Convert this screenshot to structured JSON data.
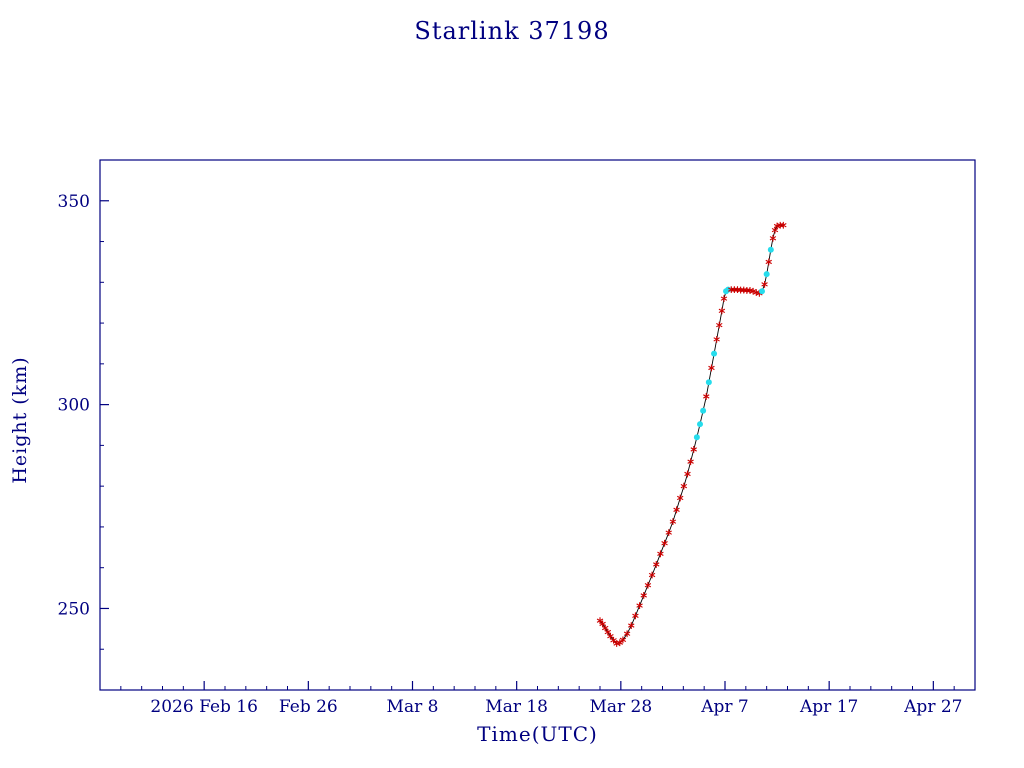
{
  "title": "Starlink 37198",
  "colors": {
    "axis": "#000080",
    "text": "#000080",
    "line": "#000000",
    "marker_red": "#cc0000",
    "marker_cyan": "#25dcec",
    "background": "#ffffff"
  },
  "chart_data": {
    "type": "line",
    "title": "Starlink 37198",
    "xlabel": "Time(UTC)",
    "ylabel": "Height (km)",
    "x_unit": "days since 2026 Feb 6",
    "xlim": [
      0,
      84
    ],
    "ylim": [
      230,
      360
    ],
    "x_ticks": [
      {
        "day": 10,
        "label": "2026 Feb 16"
      },
      {
        "day": 20,
        "label": "Feb 26"
      },
      {
        "day": 30,
        "label": "Mar  8"
      },
      {
        "day": 40,
        "label": "Mar 18"
      },
      {
        "day": 50,
        "label": "Mar 28"
      },
      {
        "day": 60,
        "label": "Apr  7"
      },
      {
        "day": 70,
        "label": "Apr 17"
      },
      {
        "day": 80,
        "label": "Apr 27"
      }
    ],
    "x_minor_step": 2,
    "y_ticks": [
      {
        "value": 250,
        "label": "250"
      },
      {
        "value": 300,
        "label": "300"
      },
      {
        "value": 350,
        "label": "350"
      }
    ],
    "y_minor_step": 10,
    "grid": false,
    "legend": "none",
    "series": [
      {
        "name": "height",
        "line_color_key": "line",
        "marker": "asterisk",
        "points": [
          [
            48.0,
            247.0,
            "r"
          ],
          [
            48.25,
            246.2,
            "r"
          ],
          [
            48.5,
            245.2,
            "r"
          ],
          [
            48.75,
            244.2,
            "r"
          ],
          [
            49.0,
            243.2,
            "r"
          ],
          [
            49.3,
            242.2,
            "r"
          ],
          [
            49.6,
            241.4,
            "r"
          ],
          [
            49.9,
            241.6,
            "r"
          ],
          [
            50.2,
            242.3,
            "r"
          ],
          [
            50.6,
            243.8,
            "r"
          ],
          [
            51.0,
            245.8,
            "r"
          ],
          [
            51.4,
            248.2,
            "r"
          ],
          [
            51.8,
            250.7,
            "r"
          ],
          [
            52.2,
            253.2,
            "r"
          ],
          [
            52.6,
            255.7,
            "r"
          ],
          [
            53.0,
            258.2,
            "r"
          ],
          [
            53.4,
            260.8,
            "r"
          ],
          [
            53.8,
            263.4,
            "r"
          ],
          [
            54.2,
            266.0,
            "r"
          ],
          [
            54.6,
            268.6,
            "r"
          ],
          [
            55.0,
            271.3,
            "r"
          ],
          [
            55.35,
            274.2,
            "r"
          ],
          [
            55.7,
            277.1,
            "r"
          ],
          [
            56.05,
            280.0,
            "r"
          ],
          [
            56.4,
            283.0,
            "r"
          ],
          [
            56.7,
            286.0,
            "r"
          ],
          [
            57.0,
            289.0,
            "r"
          ],
          [
            57.3,
            292.0,
            "c"
          ],
          [
            57.6,
            295.2,
            "c"
          ],
          [
            57.9,
            298.5,
            "c"
          ],
          [
            58.2,
            302.0,
            "r"
          ],
          [
            58.45,
            305.5,
            "c"
          ],
          [
            58.7,
            309.0,
            "r"
          ],
          [
            58.95,
            312.5,
            "c"
          ],
          [
            59.2,
            316.0,
            "r"
          ],
          [
            59.45,
            319.5,
            "r"
          ],
          [
            59.7,
            323.0,
            "r"
          ],
          [
            59.9,
            326.0,
            "r"
          ],
          [
            60.1,
            327.8,
            "c"
          ],
          [
            60.3,
            328.2,
            "c"
          ],
          [
            60.6,
            328.2,
            "r"
          ],
          [
            60.9,
            328.2,
            "r"
          ],
          [
            61.2,
            328.2,
            "r"
          ],
          [
            61.5,
            328.1,
            "r"
          ],
          [
            61.8,
            328.1,
            "r"
          ],
          [
            62.1,
            328.0,
            "r"
          ],
          [
            62.4,
            328.0,
            "r"
          ],
          [
            62.7,
            327.8,
            "r"
          ],
          [
            63.0,
            327.5,
            "r"
          ],
          [
            63.3,
            327.3,
            "r"
          ],
          [
            63.55,
            327.8,
            "c"
          ],
          [
            63.8,
            329.5,
            "r"
          ],
          [
            64.0,
            332.0,
            "c"
          ],
          [
            64.2,
            335.0,
            "r"
          ],
          [
            64.4,
            338.0,
            "c"
          ],
          [
            64.6,
            340.8,
            "r"
          ],
          [
            64.8,
            342.8,
            "r"
          ],
          [
            65.0,
            343.8,
            "r"
          ],
          [
            65.3,
            344.0,
            "r"
          ],
          [
            65.6,
            344.0,
            "r"
          ]
        ]
      }
    ]
  }
}
